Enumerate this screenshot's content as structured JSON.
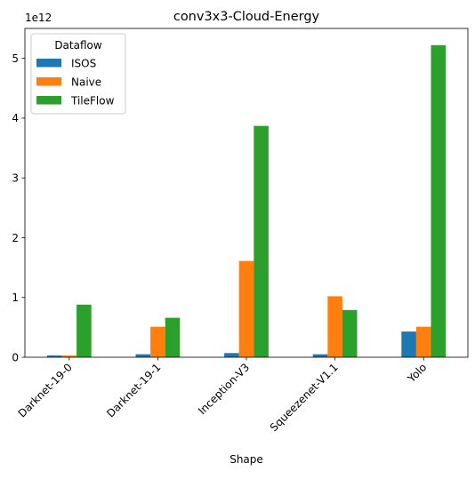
{
  "chart_data": {
    "type": "bar",
    "title": "conv3x3-Cloud-Energy",
    "xlabel": "Shape",
    "ylabel": "",
    "y_offset_label": "1e12",
    "ylim": [
      0,
      5.5
    ],
    "yticks": [
      0,
      1,
      2,
      3,
      4,
      5
    ],
    "ytick_labels": [
      "0",
      "1",
      "2",
      "3",
      "4",
      "5"
    ],
    "categories": [
      "Darknet-19-0",
      "Darknet-19-1",
      "Inception-V3",
      "Squeezenet-V1.1",
      "Yolo"
    ],
    "legend": {
      "title": "Dataflow",
      "position": "top-left"
    },
    "grid": false,
    "series": [
      {
        "name": "ISOS",
        "color": "#1f77b4",
        "values": [
          0.03,
          0.05,
          0.07,
          0.05,
          0.43
        ]
      },
      {
        "name": "Naive",
        "color": "#ff7f0e",
        "values": [
          0.03,
          0.51,
          1.61,
          1.02,
          0.51
        ]
      },
      {
        "name": "TileFlow",
        "color": "#2ca02c",
        "values": [
          0.88,
          0.66,
          3.87,
          0.79,
          5.22
        ]
      }
    ]
  }
}
